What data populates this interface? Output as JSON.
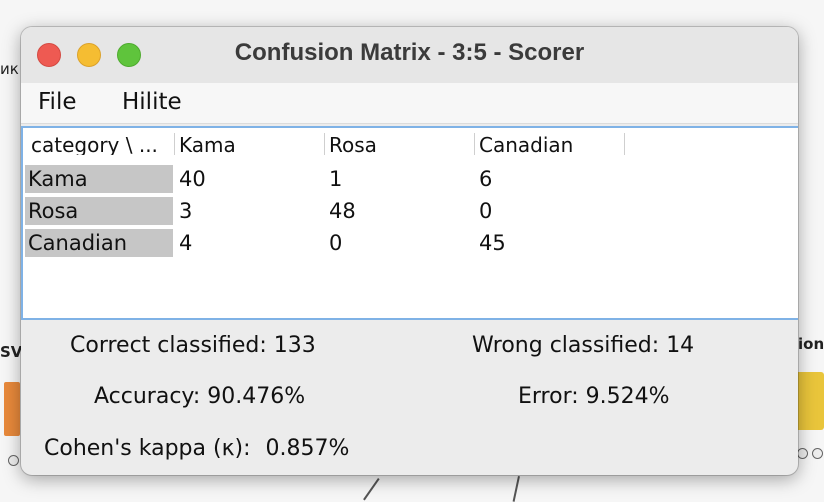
{
  "background": {
    "fragment_left_top": "ик",
    "fragment_left_mid": "SV",
    "fragment_right_mid": "ion"
  },
  "window": {
    "title": "Confusion Matrix - 3:5 - Scorer"
  },
  "menu": {
    "file": "File",
    "hilite": "Hilite"
  },
  "table": {
    "headers": [
      "category \\ ...",
      "Kama",
      "Rosa",
      "Canadian"
    ],
    "rows": [
      {
        "label": "Kama",
        "values": [
          "40",
          "1",
          "6"
        ]
      },
      {
        "label": "Rosa",
        "values": [
          "3",
          "48",
          "0"
        ]
      },
      {
        "label": "Canadian",
        "values": [
          "4",
          "0",
          "45"
        ]
      }
    ]
  },
  "stats": {
    "correct_label": "Correct classified:",
    "correct_value": "133",
    "wrong_label": "Wrong classified:",
    "wrong_value": "14",
    "accuracy_label": "Accuracy:",
    "accuracy_value": "90.476%",
    "error_label": "Error:",
    "error_value": "9.524%",
    "kappa_label": "Cohen's kappa (κ):",
    "kappa_value": "0.857%"
  },
  "colors": {
    "close": "#ee5a52",
    "minimize": "#f5bd32",
    "maximize": "#5fc43c",
    "table_focus_border": "#7fb2e6",
    "row_header_bg": "#c6c6c6"
  }
}
